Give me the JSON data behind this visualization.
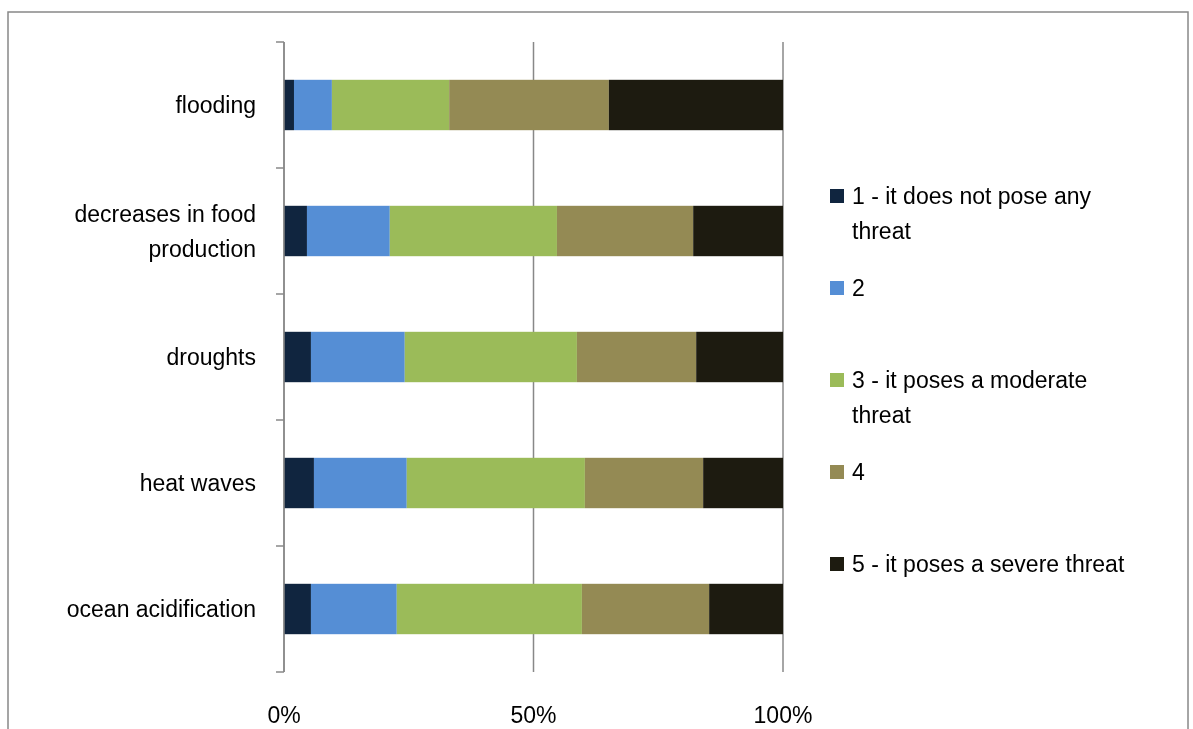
{
  "chart_data": {
    "type": "bar",
    "orientation": "horizontal",
    "stacked": true,
    "categories": [
      "flooding",
      "decreases in food production",
      "droughts",
      "heat waves",
      "ocean acidification"
    ],
    "series": [
      {
        "name": "1 - it does not pose any threat",
        "color": "#10253f",
        "values": [
          2.0,
          4.6,
          5.4,
          6.0,
          5.4
        ]
      },
      {
        "name": "2",
        "color": "#558ed5",
        "values": [
          7.6,
          16.6,
          18.8,
          18.6,
          17.2
        ]
      },
      {
        "name": "3 - it poses a moderate threat",
        "color": "#9bbb59",
        "values": [
          23.5,
          33.5,
          34.5,
          35.7,
          37.1
        ]
      },
      {
        "name": "4",
        "color": "#948a54",
        "values": [
          32.0,
          27.3,
          23.9,
          23.7,
          25.5
        ]
      },
      {
        "name": "5 - it poses a severe threat",
        "color": "#1d1b10",
        "values": [
          34.9,
          18.0,
          17.4,
          16.0,
          14.8
        ]
      }
    ],
    "xlim": [
      0,
      100
    ],
    "xticks": [
      {
        "value": 0,
        "label": "0%"
      },
      {
        "value": 50,
        "label": "50%"
      },
      {
        "value": 100,
        "label": "100%"
      }
    ],
    "grid": "x",
    "legend": "right"
  }
}
